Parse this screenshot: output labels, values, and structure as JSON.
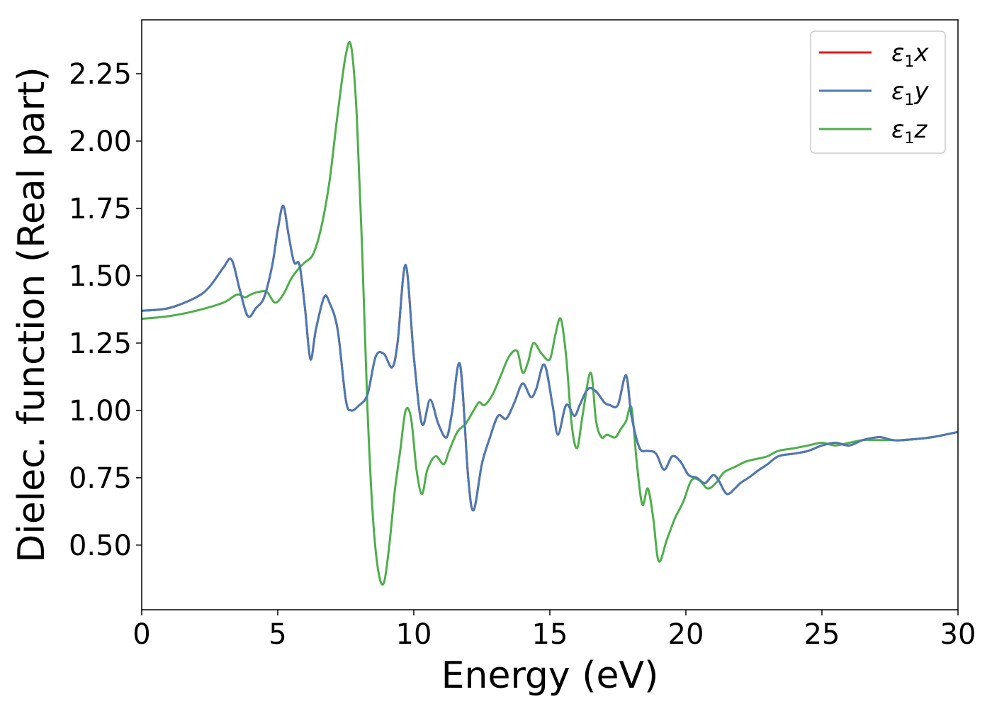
{
  "chart_data": {
    "type": "line",
    "title": "",
    "xlabel": "Energy (eV)",
    "ylabel": "Dielec. function (Real part)",
    "xlim": [
      0,
      30
    ],
    "ylim": [
      0.26,
      2.45
    ],
    "xticks": [
      0,
      5,
      10,
      15,
      20,
      25,
      30
    ],
    "xtick_labels": [
      "0",
      "5",
      "10",
      "15",
      "20",
      "25",
      "30"
    ],
    "yticks": [
      0.5,
      0.75,
      1.0,
      1.25,
      1.5,
      1.75,
      2.0,
      2.25
    ],
    "ytick_labels": [
      "0.50",
      "0.75",
      "1.00",
      "1.25",
      "1.50",
      "1.75",
      "2.00",
      "2.25"
    ],
    "grid": false,
    "legend_position": "top-right",
    "series": [
      {
        "name": "ε1x",
        "color": "#e41a1c",
        "x": [
          0,
          1,
          2,
          2.5,
          3,
          3.3,
          3.6,
          3.9,
          4.2,
          4.5,
          4.8,
          5.0,
          5.2,
          5.4,
          5.6,
          5.8,
          6.0,
          6.2,
          6.4,
          6.7,
          6.9,
          7.2,
          7.5,
          7.7,
          8.0,
          8.3,
          8.6,
          8.9,
          9.2,
          9.4,
          9.7,
          10.0,
          10.3,
          10.6,
          10.9,
          11.2,
          11.4,
          11.7,
          12.0,
          12.2,
          12.5,
          12.8,
          13.1,
          13.4,
          13.7,
          14.0,
          14.3,
          14.5,
          14.8,
          15.1,
          15.3,
          15.6,
          15.9,
          16.1,
          16.4,
          16.7,
          17.0,
          17.2,
          17.5,
          17.8,
          18.0,
          18.3,
          18.6,
          18.9,
          19.2,
          19.5,
          19.8,
          20.1,
          20.4,
          20.7,
          21.0,
          21.2,
          21.5,
          21.8,
          22.0,
          22.3,
          22.7,
          23.0,
          23.4,
          24.0,
          24.5,
          25.0,
          25.5,
          26.0,
          26.5,
          27.0,
          27.2,
          27.6,
          28.0,
          29.0,
          30.0
        ],
        "values": [
          1.37,
          1.38,
          1.42,
          1.46,
          1.53,
          1.56,
          1.45,
          1.35,
          1.38,
          1.42,
          1.54,
          1.67,
          1.76,
          1.65,
          1.55,
          1.54,
          1.38,
          1.19,
          1.3,
          1.42,
          1.4,
          1.3,
          1.04,
          1.0,
          1.02,
          1.06,
          1.2,
          1.21,
          1.16,
          1.25,
          1.54,
          1.2,
          0.95,
          1.04,
          0.95,
          0.9,
          0.99,
          1.17,
          0.75,
          0.63,
          0.8,
          0.9,
          0.98,
          0.97,
          1.03,
          1.1,
          1.05,
          1.08,
          1.17,
          1.02,
          0.91,
          1.02,
          0.98,
          1.02,
          1.08,
          1.07,
          1.03,
          1.02,
          1.02,
          1.13,
          0.98,
          0.86,
          0.85,
          0.84,
          0.78,
          0.83,
          0.81,
          0.76,
          0.75,
          0.73,
          0.76,
          0.74,
          0.69,
          0.71,
          0.73,
          0.75,
          0.78,
          0.8,
          0.83,
          0.84,
          0.85,
          0.87,
          0.88,
          0.87,
          0.89,
          0.9,
          0.9,
          0.89,
          0.89,
          0.9,
          0.92
        ]
      },
      {
        "name": "ε1y",
        "color": "#4a7ab5",
        "x": [
          0,
          1,
          2,
          2.5,
          3,
          3.3,
          3.6,
          3.9,
          4.2,
          4.5,
          4.8,
          5.0,
          5.2,
          5.4,
          5.6,
          5.8,
          6.0,
          6.2,
          6.4,
          6.7,
          6.9,
          7.2,
          7.5,
          7.7,
          8.0,
          8.3,
          8.6,
          8.9,
          9.2,
          9.4,
          9.7,
          10.0,
          10.3,
          10.6,
          10.9,
          11.2,
          11.4,
          11.7,
          12.0,
          12.2,
          12.5,
          12.8,
          13.1,
          13.4,
          13.7,
          14.0,
          14.3,
          14.5,
          14.8,
          15.1,
          15.3,
          15.6,
          15.9,
          16.1,
          16.4,
          16.7,
          17.0,
          17.2,
          17.5,
          17.8,
          18.0,
          18.3,
          18.6,
          18.9,
          19.2,
          19.5,
          19.8,
          20.1,
          20.4,
          20.7,
          21.0,
          21.2,
          21.5,
          21.8,
          22.0,
          22.3,
          22.7,
          23.0,
          23.4,
          24.0,
          24.5,
          25.0,
          25.5,
          26.0,
          26.5,
          27.0,
          27.2,
          27.6,
          28.0,
          29.0,
          30.0
        ],
        "values": [
          1.37,
          1.38,
          1.42,
          1.46,
          1.53,
          1.56,
          1.45,
          1.35,
          1.38,
          1.42,
          1.54,
          1.67,
          1.76,
          1.65,
          1.55,
          1.54,
          1.38,
          1.19,
          1.3,
          1.42,
          1.4,
          1.3,
          1.04,
          1.0,
          1.02,
          1.06,
          1.2,
          1.21,
          1.16,
          1.25,
          1.54,
          1.2,
          0.95,
          1.04,
          0.95,
          0.9,
          0.99,
          1.17,
          0.75,
          0.63,
          0.8,
          0.9,
          0.98,
          0.97,
          1.03,
          1.1,
          1.05,
          1.08,
          1.17,
          1.02,
          0.91,
          1.02,
          0.98,
          1.02,
          1.08,
          1.07,
          1.03,
          1.02,
          1.02,
          1.13,
          0.98,
          0.86,
          0.85,
          0.84,
          0.78,
          0.83,
          0.81,
          0.76,
          0.75,
          0.73,
          0.76,
          0.74,
          0.69,
          0.71,
          0.73,
          0.75,
          0.78,
          0.8,
          0.83,
          0.84,
          0.85,
          0.87,
          0.88,
          0.87,
          0.89,
          0.9,
          0.9,
          0.89,
          0.89,
          0.9,
          0.92
        ]
      },
      {
        "name": "ε1z",
        "color": "#4daf4a",
        "x": [
          0,
          1,
          2,
          3,
          3.5,
          3.8,
          4.0,
          4.3,
          4.6,
          4.9,
          5.2,
          5.5,
          5.8,
          6.0,
          6.3,
          6.6,
          6.9,
          7.2,
          7.5,
          7.7,
          7.9,
          8.1,
          8.3,
          8.5,
          8.7,
          8.9,
          9.1,
          9.3,
          9.5,
          9.7,
          9.9,
          10.1,
          10.3,
          10.5,
          10.8,
          11.1,
          11.3,
          11.6,
          11.9,
          12.2,
          12.4,
          12.6,
          12.9,
          13.2,
          13.5,
          13.8,
          14.0,
          14.2,
          14.4,
          14.7,
          15.0,
          15.2,
          15.4,
          15.6,
          15.8,
          16.0,
          16.2,
          16.5,
          16.7,
          16.9,
          17.1,
          17.4,
          17.6,
          17.8,
          18.0,
          18.2,
          18.4,
          18.6,
          18.8,
          19.0,
          19.3,
          19.6,
          19.9,
          20.2,
          20.5,
          20.8,
          21.1,
          21.4,
          21.8,
          22.2,
          22.6,
          23.0,
          23.4,
          24.0,
          24.5,
          25.0,
          25.5,
          26.0,
          26.5,
          27.0,
          27.5,
          28.0,
          29.0,
          30.0
        ],
        "values": [
          1.34,
          1.35,
          1.37,
          1.4,
          1.43,
          1.42,
          1.43,
          1.44,
          1.44,
          1.4,
          1.43,
          1.49,
          1.53,
          1.55,
          1.58,
          1.68,
          1.85,
          2.1,
          2.32,
          2.35,
          2.1,
          1.6,
          1.0,
          0.6,
          0.4,
          0.36,
          0.5,
          0.7,
          0.85,
          1.0,
          0.97,
          0.78,
          0.69,
          0.78,
          0.83,
          0.8,
          0.85,
          0.92,
          0.95,
          1.0,
          1.03,
          1.02,
          1.06,
          1.13,
          1.2,
          1.22,
          1.14,
          1.18,
          1.25,
          1.21,
          1.19,
          1.28,
          1.34,
          1.2,
          0.95,
          0.86,
          0.98,
          1.14,
          0.96,
          0.9,
          0.91,
          0.9,
          0.93,
          0.96,
          1.01,
          0.8,
          0.65,
          0.71,
          0.6,
          0.44,
          0.52,
          0.6,
          0.66,
          0.74,
          0.74,
          0.71,
          0.73,
          0.77,
          0.79,
          0.81,
          0.82,
          0.83,
          0.85,
          0.86,
          0.87,
          0.88,
          0.87,
          0.88,
          0.89,
          0.89,
          0.89,
          0.89,
          0.9,
          0.92
        ]
      }
    ]
  }
}
